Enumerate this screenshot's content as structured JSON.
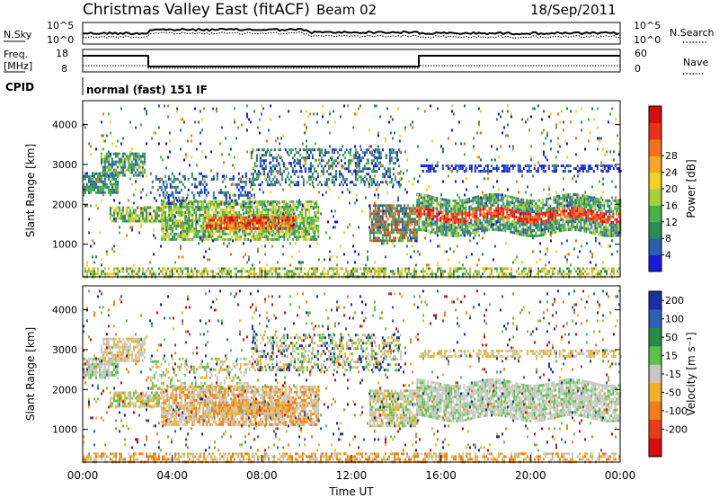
{
  "header": {
    "title": "Christmas Valley East (fitACF)",
    "beam": "Beam 02",
    "date": "18/Sep/2011"
  },
  "panels": {
    "nsky": {
      "left_label": "N.Sky",
      "right_label": "N.Search",
      "ticks": [
        "10^5",
        "10^0"
      ],
      "right_ticks": [
        "10^5",
        "10^0"
      ]
    },
    "freq": {
      "left_label_1": "Freq.",
      "left_label_2": "[MHz]",
      "right_label": "Nave",
      "left_ticks": [
        "18",
        "8"
      ],
      "right_ticks": [
        "60",
        "0"
      ]
    },
    "cpid": {
      "label": "CPID",
      "text": "normal (fast) 151 IF"
    }
  },
  "chart_data": [
    {
      "type": "heatmap",
      "name": "power",
      "ylabel": "Slant Range [km]",
      "ylim": [
        180,
        4600
      ],
      "yticks": [
        "1000",
        "2000",
        "3000",
        "4000"
      ],
      "colorbar": {
        "label": "Power [dB]",
        "ticks": [
          "4",
          "8",
          "12",
          "16",
          "20",
          "24",
          "28"
        ],
        "colors": [
          "#1a1adb",
          "#2a5fb0",
          "#2f8a5a",
          "#48b04a",
          "#a9cf3a",
          "#f2d027",
          "#f5a623",
          "#f0731c",
          "#e8331c",
          "#d40f0f"
        ]
      }
    },
    {
      "type": "heatmap",
      "name": "velocity",
      "ylabel": "Slant Range [km]",
      "ylim": [
        180,
        4600
      ],
      "yticks": [
        "1000",
        "2000",
        "3000",
        "4000"
      ],
      "colorbar": {
        "label": "Velocity [m s⁻¹]",
        "ticks": [
          "200",
          "100",
          "50",
          "15",
          "-15",
          "-50",
          "-100",
          "-200"
        ],
        "colors": [
          "#1c2fa0",
          "#2c63b8",
          "#2a8a45",
          "#5dc24a",
          "#c7c7c2",
          "#f0b127",
          "#f07d1c",
          "#e63b1c",
          "#d40f0f"
        ]
      }
    }
  ],
  "xaxis": {
    "ticks": [
      "00:00",
      "04:00",
      "08:00",
      "12:00",
      "16:00",
      "20:00",
      "00:00"
    ],
    "label": "Time UT"
  }
}
